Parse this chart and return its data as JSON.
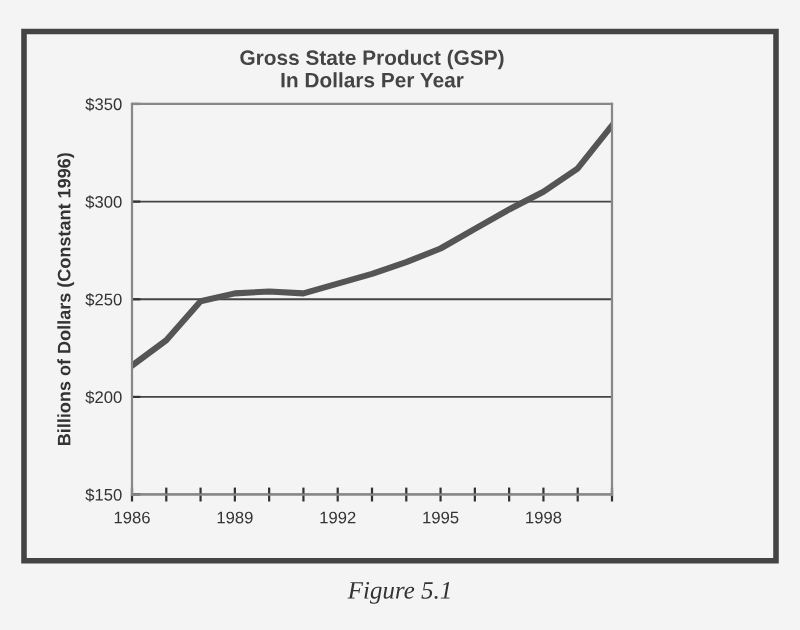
{
  "chart_data": {
    "type": "line",
    "title": "Gross State Product (GSP)\nIn Dollars Per Year",
    "ylabel": "Billions of Dollars (Constant 1996)",
    "x": [
      1986,
      1987,
      1988,
      1989,
      1990,
      1991,
      1992,
      1993,
      1994,
      1995,
      1996,
      1997,
      1998,
      1999,
      2000
    ],
    "series": [
      {
        "color": "#555555",
        "values": [
          216,
          229,
          249,
          253,
          254,
          253,
          258,
          263,
          269,
          276,
          286,
          296,
          305,
          317,
          339
        ]
      }
    ],
    "xlim": [
      1986,
      2000
    ],
    "xticks": [
      1986,
      {
        "value": 1987,
        "label": null
      },
      {
        "value": 1988,
        "label": null
      },
      1989,
      {
        "value": 1990,
        "label": null
      },
      {
        "value": 1991,
        "label": null
      },
      1992,
      {
        "value": 1993,
        "label": null
      },
      {
        "value": 1994,
        "label": null
      },
      1995,
      {
        "value": 1996,
        "label": null
      },
      {
        "value": 1997,
        "label": null
      },
      1998,
      {
        "value": 1999,
        "label": null
      },
      {
        "value": 2000,
        "label": null
      }
    ],
    "ylim": [
      150,
      350
    ],
    "yticks": [
      {
        "value": 150,
        "label": "$150"
      },
      {
        "value": 200,
        "label": "$200"
      },
      {
        "value": 250,
        "label": "$250"
      },
      {
        "value": 300,
        "label": "$300"
      },
      {
        "value": 350,
        "label": "$350"
      }
    ],
    "grid": "y",
    "marker": "none",
    "line_style": "solid",
    "legend": false,
    "annotations": [
      "Figure 5.1"
    ]
  }
}
